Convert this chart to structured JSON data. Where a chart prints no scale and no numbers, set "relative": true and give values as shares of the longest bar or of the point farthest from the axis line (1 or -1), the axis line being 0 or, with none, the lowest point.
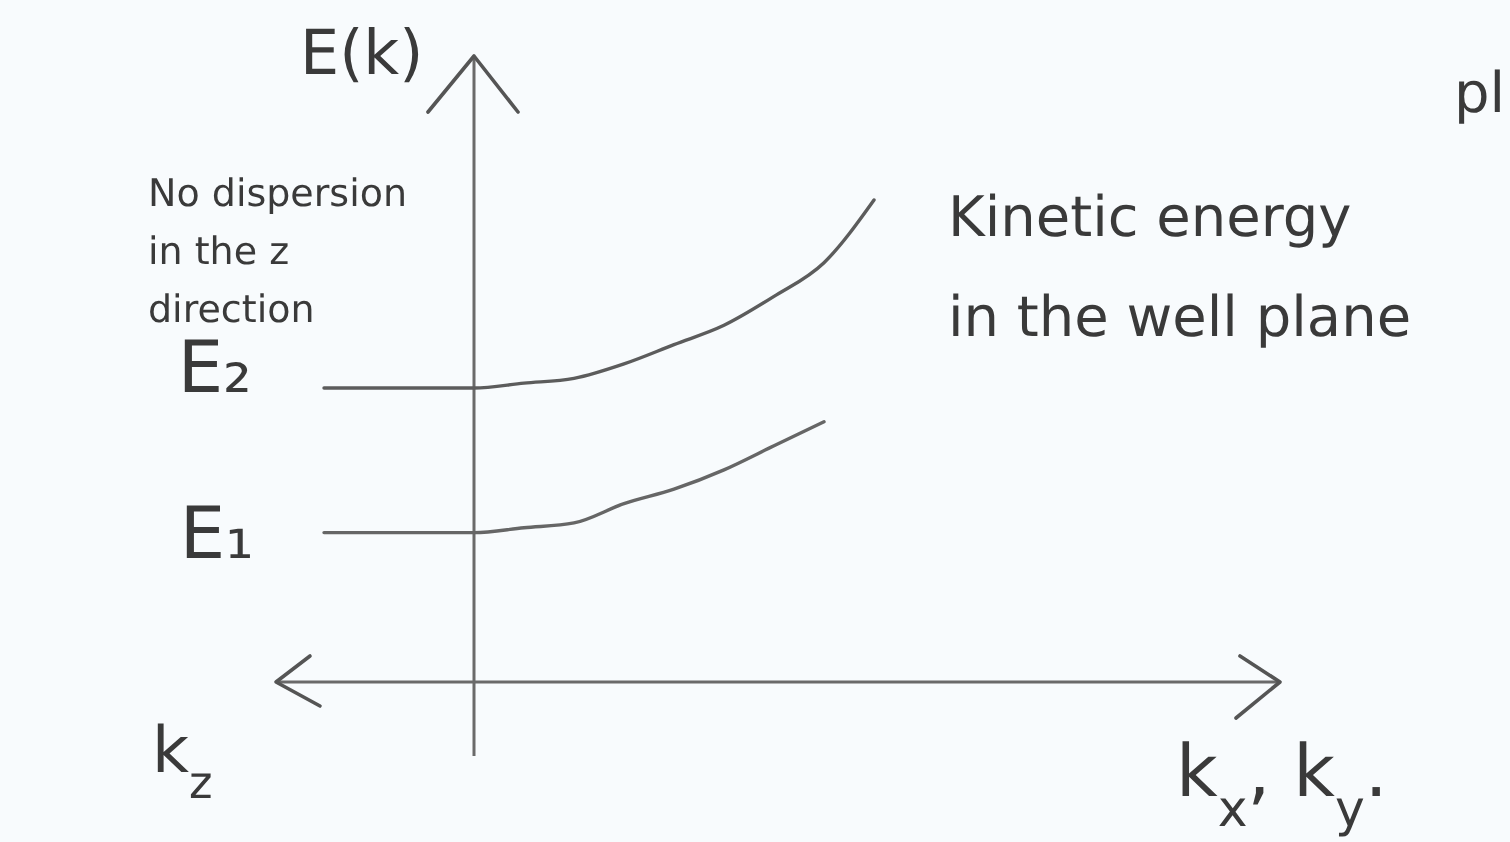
{
  "chart_data": {
    "type": "line",
    "relative": true,
    "ylabel": "E(k)",
    "xlabel": "k$_{x}$, k$_{y}$.",
    "categories": [
      null,
      null,
      null,
      null,
      null,
      null,
      null,
      null,
      null,
      null,
      null,
      null,
      null,
      null,
      null,
      null,
      null,
      null,
      null,
      null
    ],
    "series": [
      {
        "color": "#5c5c5c",
        "values": [
          0.61,
          0.61,
          0.61,
          0.61,
          0.62,
          0.63,
          0.66,
          0.7,
          0.74,
          0.8,
          0.87,
          1,
          null,
          null,
          null,
          null,
          null,
          null,
          null,
          null
        ]
      },
      {
        "color": "#666666",
        "values": [
          0.31,
          0.31,
          0.31,
          0.31,
          0.32,
          0.33,
          0.37,
          0.4,
          0.44,
          0.49,
          0.54,
          null,
          null,
          null,
          null,
          null,
          null,
          null,
          null,
          null
        ]
      }
    ],
    "annotations": [
      "No dispersion\nin the z\ndirection",
      "E₂",
      "E₁",
      "Kinetic energy\nin the well plane",
      "k$_{z}$",
      "pl"
    ]
  }
}
